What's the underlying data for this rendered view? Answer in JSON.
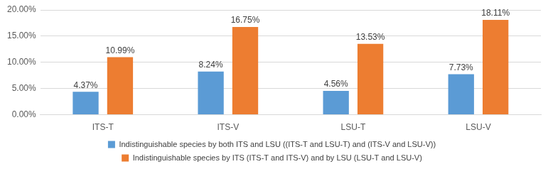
{
  "chart_data": {
    "type": "bar",
    "categories": [
      "ITS-T",
      "ITS-V",
      "LSU-T",
      "LSU-V"
    ],
    "series": [
      {
        "name": "Indistinguishable species by both ITS and LSU ((ITS-T and LSU-T) and (ITS-V and LSU-V))",
        "color": "#5b9bd5",
        "values": [
          4.37,
          8.24,
          4.56,
          7.73
        ],
        "value_labels": [
          "4.37%",
          "8.24%",
          "4.56%",
          "7.73%"
        ]
      },
      {
        "name": "Indistinguishable species by ITS (ITS-T and ITS-V) and by LSU (LSU-T and LSU-V)",
        "color": "#ed7d31",
        "values": [
          10.99,
          16.75,
          13.53,
          18.11
        ],
        "value_labels": [
          "10.99%",
          "16.75%",
          "13.53%",
          "18.11%"
        ]
      }
    ],
    "ylim": [
      0,
      20
    ],
    "yticks": [
      {
        "value": 0,
        "label": "0.00%"
      },
      {
        "value": 5,
        "label": "5.00%"
      },
      {
        "value": 10,
        "label": "10.00%"
      },
      {
        "value": 15,
        "label": "15.00%"
      },
      {
        "value": 20,
        "label": "20.00%"
      }
    ],
    "grid": true,
    "legend": "bottom",
    "data_labels": true
  }
}
